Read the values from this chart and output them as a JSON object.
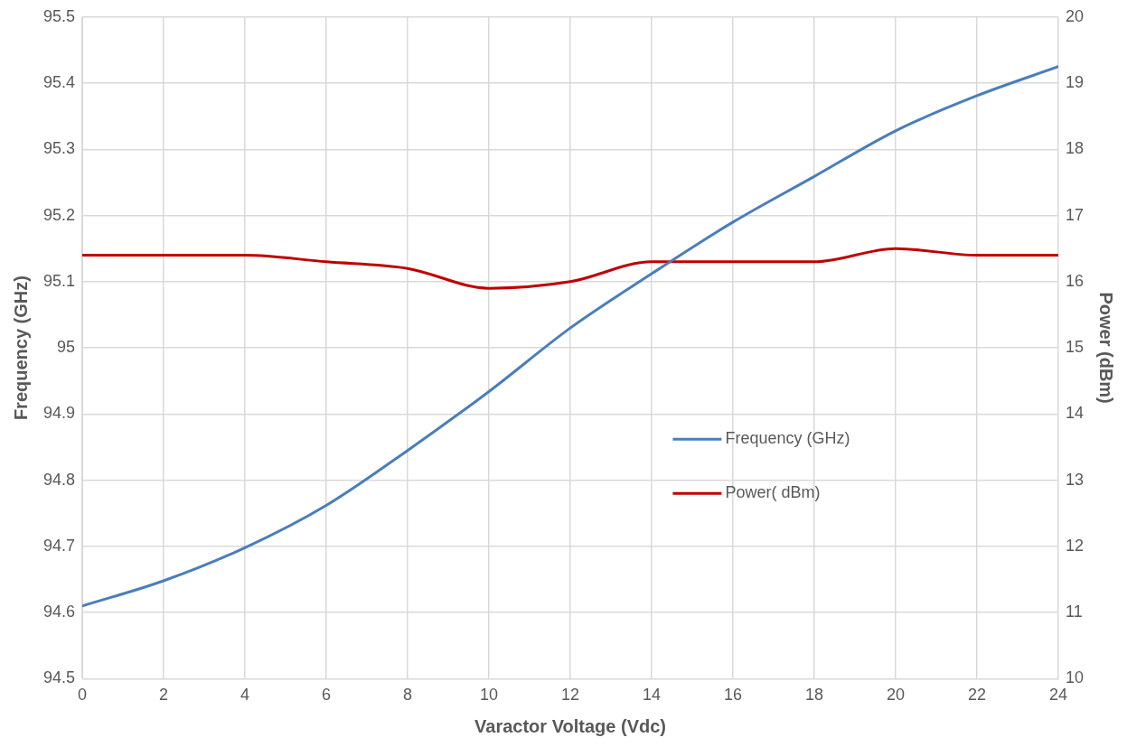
{
  "chart_data": {
    "type": "line",
    "xlabel": "Varactor Voltage (Vdc)",
    "ylabel": "Frequency (GHz)",
    "y2label": "Power (dBm)",
    "x": [
      0,
      2,
      4,
      6,
      8,
      10,
      12,
      14,
      16,
      18,
      20,
      22,
      24
    ],
    "series": [
      {
        "name": "Frequency (GHz)",
        "color": "#4a7ebb",
        "values": [
          94.61,
          94.648,
          94.698,
          94.762,
          94.845,
          94.934,
          95.03,
          95.112,
          95.19,
          95.259,
          95.328,
          95.381,
          95.425
        ]
      },
      {
        "name": "Power( dBm)",
        "color": "#c00000",
        "axis": "y2",
        "values": [
          16.4,
          16.4,
          16.4,
          16.3,
          16.2,
          15.9,
          16.0,
          16.3,
          16.3,
          16.3,
          16.5,
          16.4,
          16.4
        ]
      }
    ],
    "xlim": [
      0,
      24
    ],
    "xticks": [
      0,
      2,
      4,
      6,
      8,
      10,
      12,
      14,
      16,
      18,
      20,
      22,
      24
    ],
    "ylim": [
      94.5,
      95.5
    ],
    "yticks": [
      94.5,
      94.6,
      94.7,
      94.8,
      94.9,
      95,
      95.1,
      95.2,
      95.3,
      95.4,
      95.5
    ],
    "y2lim": [
      10,
      20
    ],
    "y2ticks": [
      10,
      11,
      12,
      13,
      14,
      15,
      16,
      17,
      18,
      19,
      20
    ],
    "grid": true,
    "legend": "center right",
    "marker": "none",
    "line_style": "solid"
  }
}
